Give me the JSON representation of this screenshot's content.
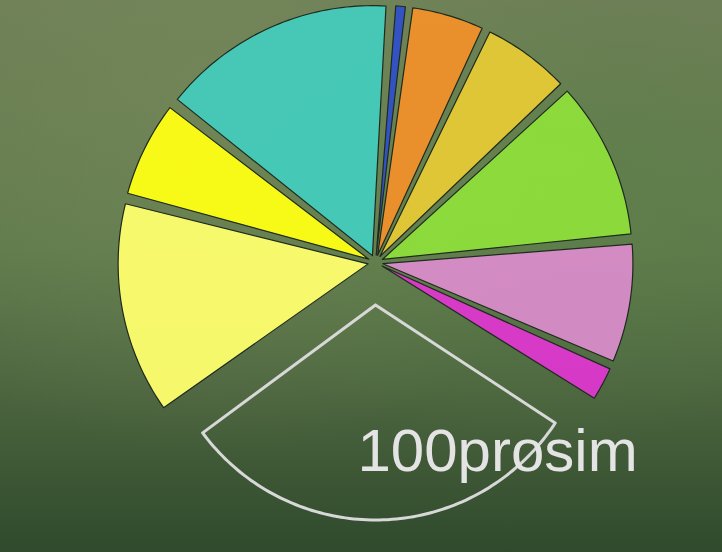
{
  "chart_data": {
    "type": "pie",
    "categories": [
      null,
      null,
      null,
      null,
      null,
      null,
      null,
      "100prosim",
      null,
      null
    ],
    "values": [
      15.5,
      1,
      5,
      6,
      10.5,
      8,
      2.5,
      31,
      14,
      6.5
    ],
    "colors": [
      "#45cbbd",
      "#3050c8",
      "#f0902a",
      "#e6c935",
      "#8ede3a",
      "#d98cc9",
      "#de37cf",
      "none",
      "#ffff6e",
      "#ffff14"
    ]
  }
}
